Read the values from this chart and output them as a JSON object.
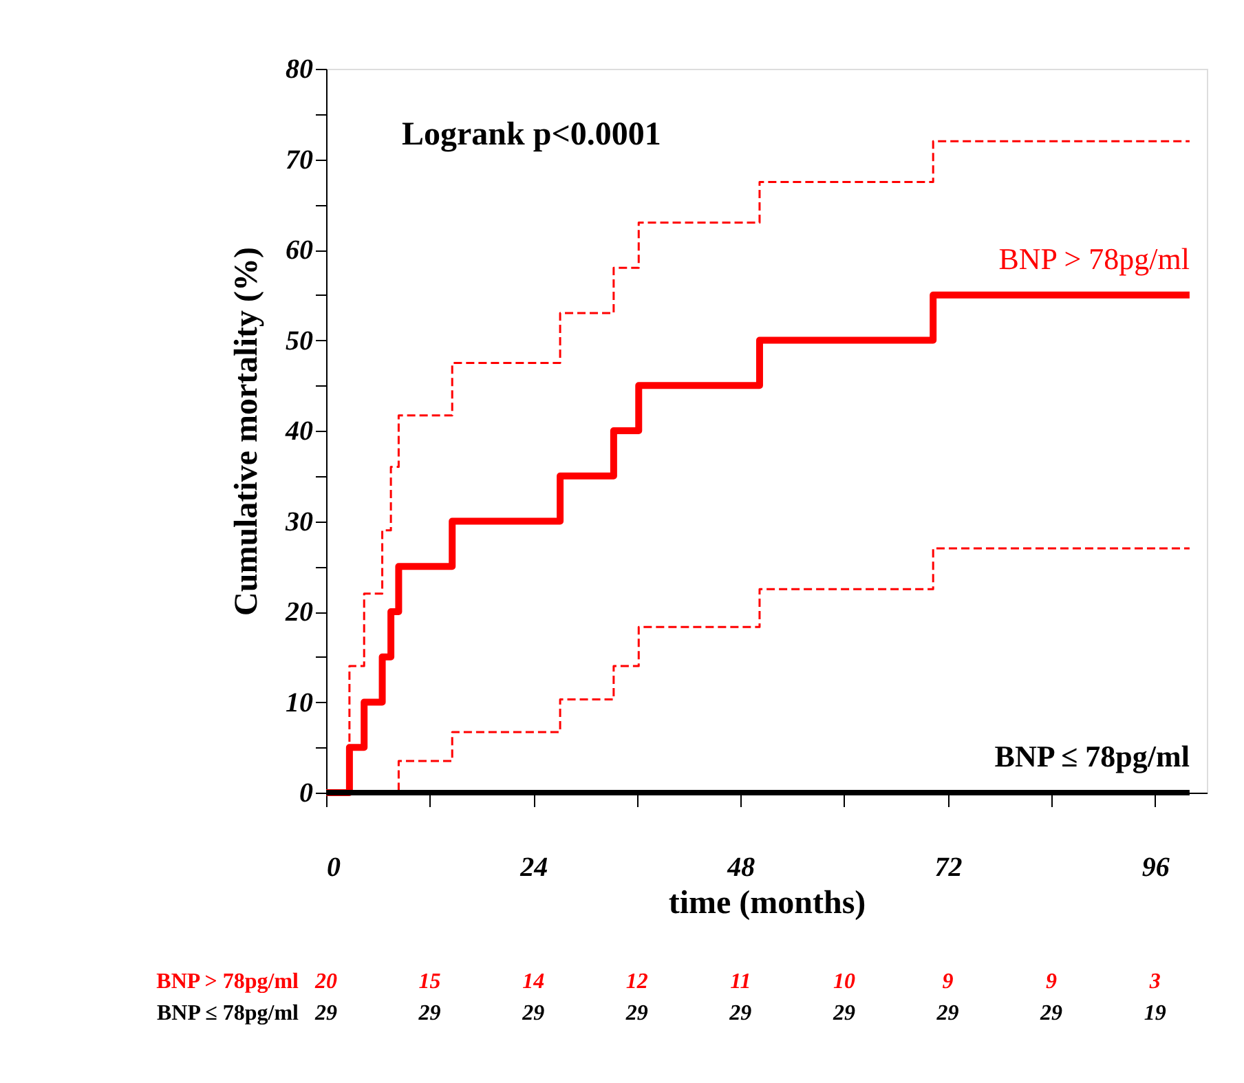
{
  "chart_data": {
    "type": "step",
    "xlabel": "time (months)",
    "ylabel": "Cumulative mortality (%)",
    "xlim": [
      0,
      102
    ],
    "ylim": [
      0,
      80
    ],
    "xticks": [
      0,
      {
        "value": 12,
        "label": null
      },
      24,
      {
        "value": 36,
        "label": null
      },
      48,
      {
        "value": 60,
        "label": null
      },
      72,
      {
        "value": 84,
        "label": null
      },
      96
    ],
    "yticks": [
      0,
      {
        "value": 5,
        "label": null
      },
      10,
      {
        "value": 15,
        "label": null
      },
      20,
      {
        "value": 25,
        "label": null
      },
      30,
      {
        "value": 35,
        "label": null
      },
      40,
      {
        "value": 45,
        "label": null
      },
      50,
      {
        "value": 55,
        "label": null
      },
      60,
      {
        "value": 65,
        "label": null
      },
      70,
      {
        "value": 75,
        "label": null
      },
      80
    ],
    "grid": false,
    "legend": false,
    "marker": "none",
    "series": [
      {
        "name": "BNP > 78pg/ml",
        "color": "#ff0000",
        "line_style": "solid",
        "x": [
          0,
          2.7,
          4.4,
          6.5,
          7.5,
          8.4,
          14.6,
          27.1,
          33.3,
          36.2,
          50.2,
          70.3,
          100
        ],
        "values": [
          0,
          5,
          10,
          15,
          20,
          25,
          30,
          35,
          40,
          45,
          50,
          55,
          55
        ]
      },
      {
        "color": "#ff0000",
        "line_style": "dashed",
        "x": [
          0,
          8.4,
          14.6,
          27.1,
          33.3,
          36.2,
          50.2,
          70.3,
          100
        ],
        "values": [
          0,
          3.5,
          6.7,
          10.3,
          14,
          18.3,
          22.5,
          27,
          27
        ]
      },
      {
        "color": "#ff0000",
        "line_style": "dashed",
        "x": [
          0,
          2.7,
          4.4,
          6.5,
          7.5,
          8.4,
          14.6,
          27.1,
          33.3,
          36.2,
          50.2,
          70.3,
          100
        ],
        "values": [
          0,
          14,
          22,
          29,
          36,
          41.7,
          47.5,
          53,
          58,
          63,
          67.5,
          72,
          72
        ]
      },
      {
        "name": "BNP ≤ 78pg/ml",
        "color": "#000000",
        "line_style": "solid",
        "x": [
          0,
          100
        ],
        "values": [
          0,
          0
        ]
      }
    ],
    "annotations": [
      "Logrank p<0.0001",
      "BNP > 78pg/ml",
      "20",
      "15",
      "14",
      "12",
      "11",
      "10",
      "9",
      "9",
      "3",
      "BNP ≤ 78pg/ml",
      "29",
      "29",
      "29",
      "29",
      "29",
      "29",
      "29",
      "29",
      "19"
    ]
  }
}
